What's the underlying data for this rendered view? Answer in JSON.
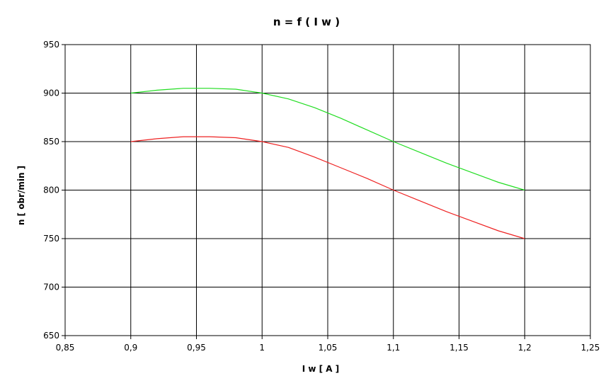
{
  "chart_data": {
    "type": "line",
    "title": "n = f ( I w )",
    "xlabel": "I w [ A ]",
    "ylabel": "n [ obr/min ]",
    "xlim": [
      0.85,
      1.25
    ],
    "ylim": [
      650,
      950
    ],
    "xticks": [
      0.85,
      0.9,
      0.95,
      1,
      1.05,
      1.1,
      1.15,
      1.2,
      1.25
    ],
    "xtick_labels": [
      "0,85",
      "0,9",
      "0,95",
      "1",
      "1,05",
      "1,1",
      "1,15",
      "1,2",
      "1,25"
    ],
    "yticks": [
      650,
      700,
      750,
      800,
      850,
      900,
      950
    ],
    "ytick_labels": [
      "650",
      "700",
      "750",
      "800",
      "850",
      "900",
      "950"
    ],
    "grid": true,
    "legend": "none",
    "series": [
      {
        "color": "#22dd22",
        "x": [
          0.9,
          0.92,
          0.94,
          0.96,
          0.98,
          1.0,
          1.02,
          1.04,
          1.06,
          1.08,
          1.1,
          1.12,
          1.14,
          1.16,
          1.18,
          1.2
        ],
        "values": [
          900,
          903,
          905,
          905,
          904,
          900,
          894,
          885,
          874,
          862,
          850,
          839,
          828,
          818,
          808,
          800
        ]
      },
      {
        "color": "#ee2222",
        "x": [
          0.9,
          0.92,
          0.94,
          0.96,
          0.98,
          1.0,
          1.02,
          1.04,
          1.06,
          1.08,
          1.1,
          1.12,
          1.14,
          1.16,
          1.18,
          1.2
        ],
        "values": [
          850,
          853,
          855,
          855,
          854,
          850,
          844,
          834,
          823,
          812,
          800,
          789,
          778,
          768,
          758,
          750
        ]
      }
    ]
  }
}
